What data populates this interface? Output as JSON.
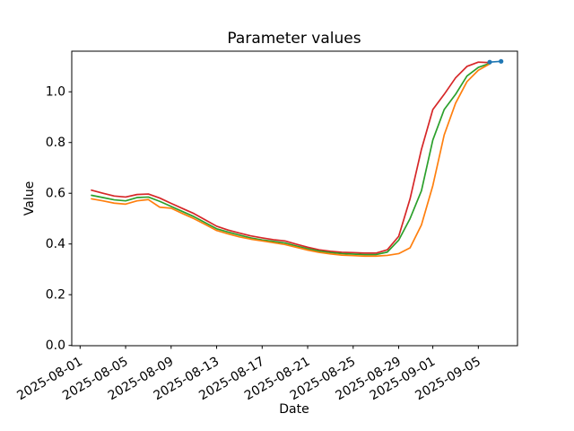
{
  "figure": {
    "title": "Parameter values",
    "xlabel": "Date",
    "ylabel": "Value",
    "background": "#ffffff",
    "text_color": "#000000"
  },
  "chart_data": {
    "type": "line",
    "title": "Parameter values",
    "xlabel": "Date",
    "ylabel": "Value",
    "grid": false,
    "legend": "none",
    "ylim": [
      0.0,
      1.16
    ],
    "yticks": [
      {
        "value": 0.0,
        "label": "0.0"
      },
      {
        "value": 0.2,
        "label": "0.2"
      },
      {
        "value": 0.4,
        "label": "0.4"
      },
      {
        "value": 0.6,
        "label": "0.6"
      },
      {
        "value": 0.8,
        "label": "0.8"
      },
      {
        "value": 1.0,
        "label": "1.0"
      }
    ],
    "xticks": [
      {
        "label": "2025-08-01"
      },
      {
        "label": "2025-08-05"
      },
      {
        "label": "2025-08-09"
      },
      {
        "label": "2025-08-13"
      },
      {
        "label": "2025-08-17"
      },
      {
        "label": "2025-08-21"
      },
      {
        "label": "2025-08-25"
      },
      {
        "label": "2025-08-29"
      },
      {
        "label": "2025-09-01"
      },
      {
        "label": "2025-09-05"
      }
    ],
    "x": [
      "2025-08-02",
      "2025-08-03",
      "2025-08-04",
      "2025-08-05",
      "2025-08-06",
      "2025-08-07",
      "2025-08-08",
      "2025-08-09",
      "2025-08-10",
      "2025-08-11",
      "2025-08-12",
      "2025-08-13",
      "2025-08-14",
      "2025-08-15",
      "2025-08-16",
      "2025-08-17",
      "2025-08-18",
      "2025-08-19",
      "2025-08-20",
      "2025-08-21",
      "2025-08-22",
      "2025-08-23",
      "2025-08-24",
      "2025-08-25",
      "2025-08-26",
      "2025-08-27",
      "2025-08-28",
      "2025-08-29",
      "2025-08-30",
      "2025-08-31",
      "2025-09-01",
      "2025-09-02",
      "2025-09-03",
      "2025-09-04",
      "2025-09-05",
      "2025-09-06"
    ],
    "series": [
      {
        "name": "parameter-red",
        "color": "#d62728",
        "marker": "none",
        "values": [
          0.612,
          0.6,
          0.589,
          0.585,
          0.595,
          0.597,
          0.581,
          0.56,
          0.54,
          0.52,
          0.495,
          0.47,
          0.455,
          0.443,
          0.432,
          0.424,
          0.417,
          0.412,
          0.399,
          0.387,
          0.377,
          0.371,
          0.367,
          0.366,
          0.364,
          0.364,
          0.377,
          0.43,
          0.578,
          0.773,
          0.93,
          0.99,
          1.055,
          1.1,
          1.117,
          1.115
        ]
      },
      {
        "name": "parameter-green",
        "color": "#2ca02c",
        "marker": "none",
        "values": [
          0.592,
          0.583,
          0.574,
          0.57,
          0.583,
          0.585,
          0.568,
          0.548,
          0.528,
          0.508,
          0.484,
          0.46,
          0.447,
          0.435,
          0.424,
          0.416,
          0.41,
          0.404,
          0.392,
          0.381,
          0.372,
          0.366,
          0.362,
          0.36,
          0.358,
          0.358,
          0.368,
          0.415,
          0.5,
          0.61,
          0.81,
          0.93,
          0.99,
          1.062,
          1.096,
          1.112
        ]
      },
      {
        "name": "parameter-orange",
        "color": "#ff7f0e",
        "marker": "none",
        "values": [
          0.578,
          0.57,
          0.561,
          0.557,
          0.57,
          0.575,
          0.545,
          0.541,
          0.52,
          0.5,
          0.477,
          0.453,
          0.44,
          0.428,
          0.419,
          0.412,
          0.405,
          0.398,
          0.387,
          0.376,
          0.367,
          0.361,
          0.356,
          0.354,
          0.352,
          0.352,
          0.355,
          0.362,
          0.385,
          0.475,
          0.63,
          0.83,
          0.955,
          1.04,
          1.085,
          1.11
        ]
      },
      {
        "name": "endpoint-blue",
        "color": "#1f77b4",
        "marker": "o",
        "x": [
          "2025-09-06",
          "2025-09-07"
        ],
        "values": [
          1.117,
          1.12
        ]
      }
    ]
  }
}
